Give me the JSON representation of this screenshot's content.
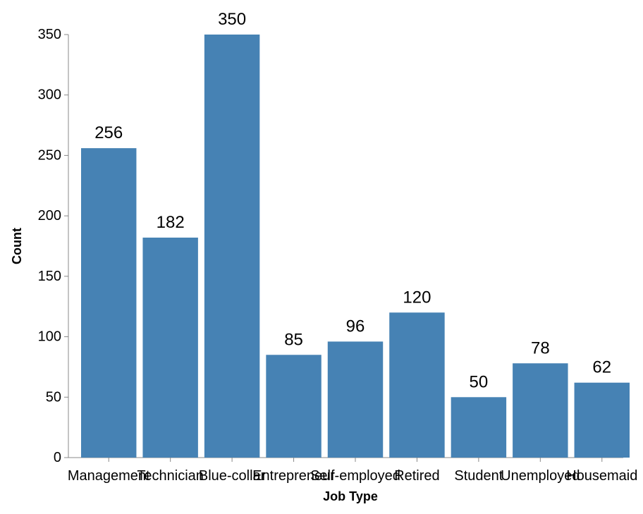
{
  "chart_data": {
    "type": "bar",
    "title": "",
    "xlabel": "Job Type",
    "ylabel": "Count",
    "categories": [
      "Management",
      "Technician",
      "Blue-collar",
      "Entrepreneur",
      "Self-employed",
      "Retired",
      "Student",
      "Unemployed",
      "Housemaid"
    ],
    "values": [
      256,
      182,
      350,
      85,
      96,
      120,
      50,
      78,
      62
    ],
    "ylim": [
      0,
      350
    ],
    "yticks": [
      0,
      50,
      100,
      150,
      200,
      250,
      300,
      350
    ],
    "grid": false,
    "legend": "none",
    "bar_color": "#4682b4",
    "axis_color": "#888888"
  }
}
